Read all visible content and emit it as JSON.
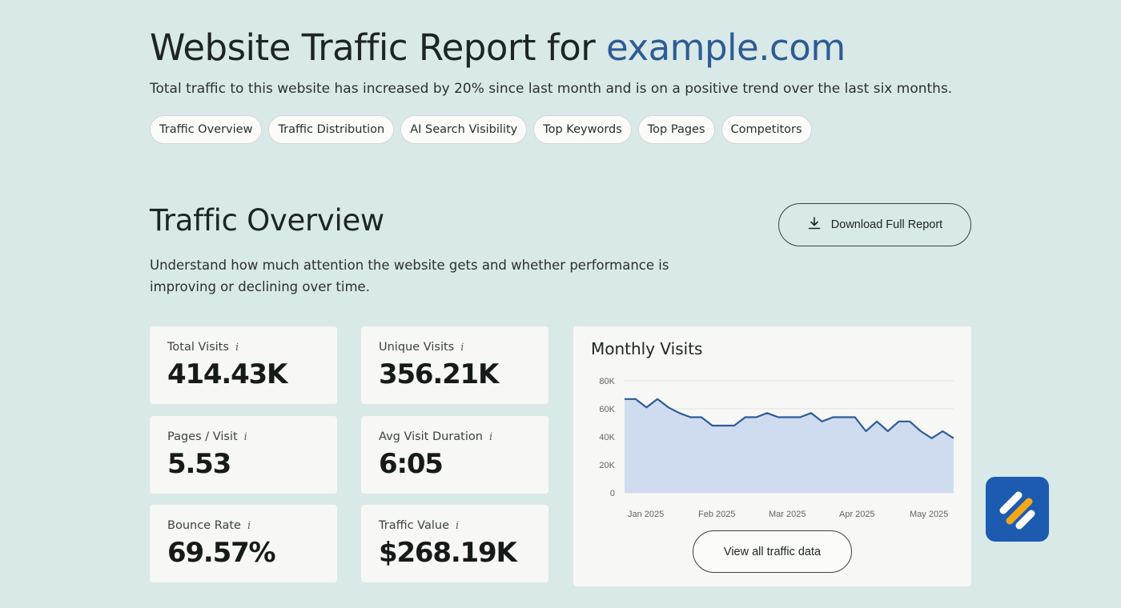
{
  "header": {
    "title_prefix": "Website Traffic Report for",
    "title_domain": "example.com",
    "subtitle": "Total traffic to this website has increased by 20% since last month and is on a positive trend over the last six months."
  },
  "tabs": [
    {
      "label": "Traffic Overview"
    },
    {
      "label": "Traffic Distribution"
    },
    {
      "label": "AI Search Visibility"
    },
    {
      "label": "Top Keywords"
    },
    {
      "label": "Top Pages"
    },
    {
      "label": "Competitors"
    }
  ],
  "section": {
    "title": "Traffic Overview",
    "description": "Understand how much attention the website gets and whether performance is improving or declining over time.",
    "download_label": "Download Full Report"
  },
  "stats": [
    {
      "label": "Total Visits",
      "value": "414.43K"
    },
    {
      "label": "Unique Visits",
      "value": "356.21K"
    },
    {
      "label": "Pages / Visit",
      "value": "5.53"
    },
    {
      "label": "Avg Visit Duration",
      "value": "6:05"
    },
    {
      "label": "Bounce Rate",
      "value": "69.57%"
    },
    {
      "label": "Traffic Value",
      "value": "$268.19K"
    }
  ],
  "info_icon": "i",
  "chart_data": {
    "type": "area",
    "title": "Monthly Visits",
    "x_tick_labels": [
      "Jan 2025",
      "Feb 2025",
      "Mar 2025",
      "Apr 2025",
      "May 2025"
    ],
    "y_tick_labels": [
      "80K",
      "60K",
      "40K",
      "20K",
      "0"
    ],
    "ylim": [
      0,
      80000
    ],
    "grid": true,
    "series": [
      {
        "values": [
          67000,
          67000,
          61000,
          67000,
          61000,
          57000,
          54000,
          54000,
          48000,
          48000,
          48000,
          54000,
          54000,
          57000,
          54000,
          54000,
          54000,
          57000,
          51000,
          54000,
          54000,
          54000,
          44000,
          51000,
          44000,
          51000,
          51000,
          44000,
          39000,
          44000,
          39000
        ],
        "x_start": "2025-01-01",
        "x_end": "2025-05-31",
        "line_color": "#2d5b9a",
        "fill_color": "#cfdcef"
      }
    ]
  },
  "view_button_label": "View all traffic data",
  "colors": {
    "background": "#d9e9e8",
    "accent": "#2e5b95",
    "badge": "#1c5bb0"
  }
}
